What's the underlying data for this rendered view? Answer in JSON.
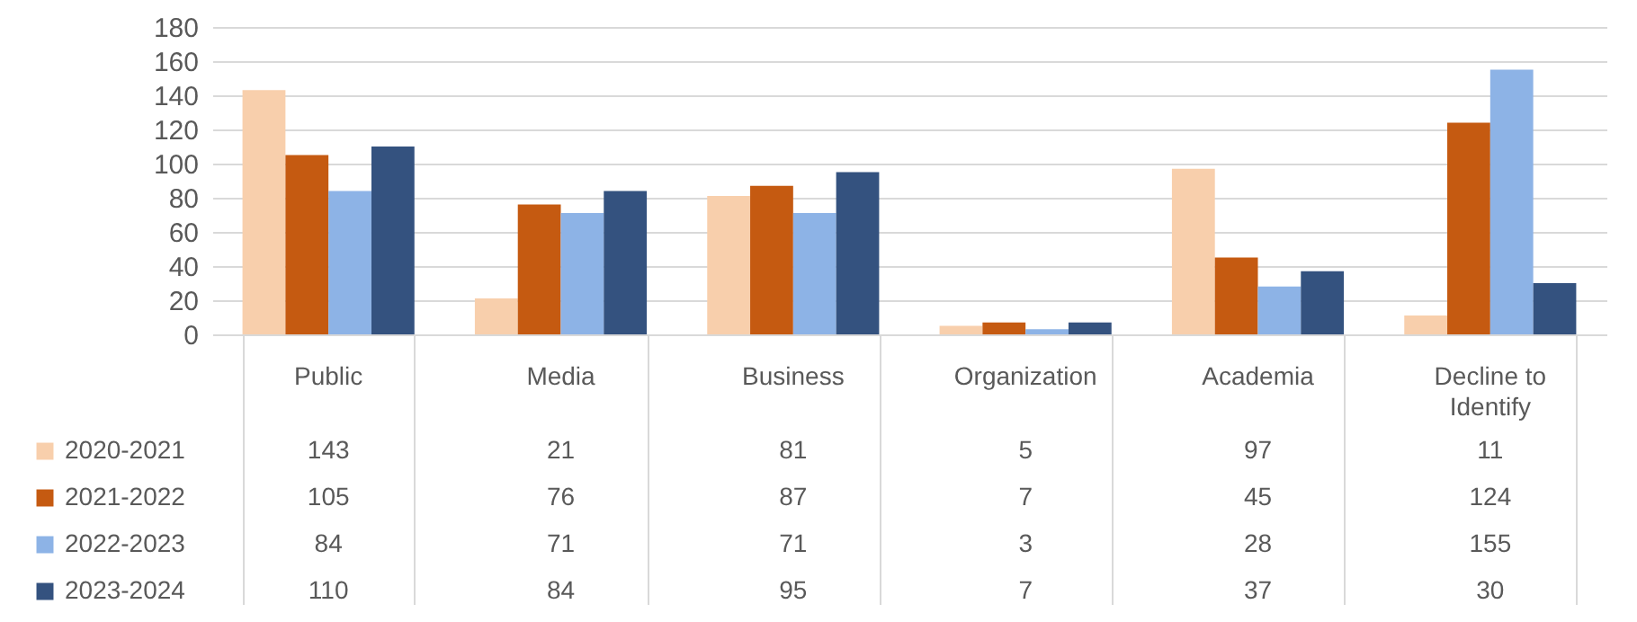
{
  "chart_data": {
    "type": "bar",
    "categories": [
      "Public",
      "Media",
      "Business",
      "Organization",
      "Academia",
      "Decline to Identify"
    ],
    "series": [
      {
        "name": "2020-2021",
        "color": "#f8cfac",
        "values": [
          143,
          21,
          81,
          5,
          97,
          11
        ]
      },
      {
        "name": "2021-2022",
        "color": "#c55a11",
        "values": [
          105,
          76,
          87,
          7,
          45,
          124
        ]
      },
      {
        "name": "2022-2023",
        "color": "#8db3e6",
        "values": [
          84,
          71,
          71,
          3,
          28,
          155
        ]
      },
      {
        "name": "2023-2024",
        "color": "#34527f",
        "values": [
          110,
          84,
          95,
          7,
          37,
          30
        ]
      }
    ],
    "ylim": [
      0,
      180
    ],
    "yticks": [
      0,
      20,
      40,
      60,
      80,
      100,
      120,
      140,
      160,
      180
    ],
    "grid": "y",
    "legend": "bottom left",
    "data_labels": true
  }
}
